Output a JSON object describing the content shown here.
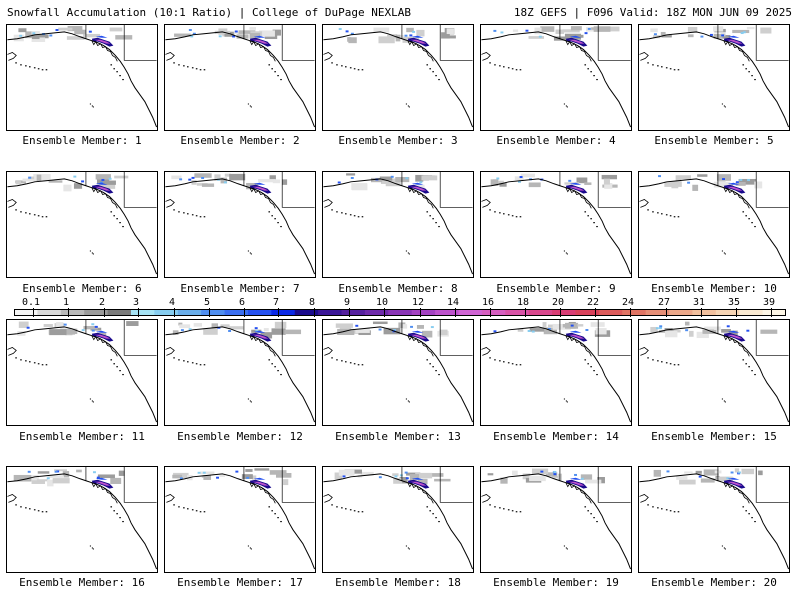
{
  "header": {
    "left": "Snowfall Accumulation (10:1 Ratio) | College of DuPage NEXLAB",
    "right": "18Z GEFS | F096 Valid: 18Z MON JUN 09 2025"
  },
  "panels": [
    {
      "label": "Ensemble Member: 1"
    },
    {
      "label": "Ensemble Member: 2"
    },
    {
      "label": "Ensemble Member: 3"
    },
    {
      "label": "Ensemble Member: 4"
    },
    {
      "label": "Ensemble Member: 5"
    },
    {
      "label": "Ensemble Member: 6"
    },
    {
      "label": "Ensemble Member: 7"
    },
    {
      "label": "Ensemble Member: 8"
    },
    {
      "label": "Ensemble Member: 9"
    },
    {
      "label": "Ensemble Member: 10"
    },
    {
      "label": "Ensemble Member: 11"
    },
    {
      "label": "Ensemble Member: 12"
    },
    {
      "label": "Ensemble Member: 13"
    },
    {
      "label": "Ensemble Member: 14"
    },
    {
      "label": "Ensemble Member: 15"
    },
    {
      "label": "Ensemble Member: 16"
    },
    {
      "label": "Ensemble Member: 17"
    },
    {
      "label": "Ensemble Member: 18"
    },
    {
      "label": "Ensemble Member: 19"
    },
    {
      "label": "Ensemble Member: 20"
    }
  ],
  "colorbar": {
    "ticks": [
      "0.1",
      "1",
      "2",
      "3",
      "4",
      "5",
      "6",
      "7",
      "8",
      "9",
      "10",
      "12",
      "14",
      "16",
      "18",
      "20",
      "22",
      "24",
      "27",
      "31",
      "35",
      "39"
    ],
    "colors": [
      "#f4f4f4",
      "#d8d8d8",
      "#b8b8b8",
      "#9a9a9a",
      "#7a7a7a",
      "#a6e3f5",
      "#87cdf0",
      "#6aaeea",
      "#4f8ef0",
      "#3a6ef0",
      "#2450f0",
      "#0a28e6",
      "#1a0a8c",
      "#3a1596",
      "#55209e",
      "#6e2aaa",
      "#8a35b6",
      "#a442c2",
      "#bd52cc",
      "#d064d4",
      "#d65ec0",
      "#d852a6",
      "#d8468c",
      "#d83c74",
      "#d8405a",
      "#dc5a5a",
      "#e07464",
      "#e68e76",
      "#eca88a",
      "#f2c09e",
      "#f6d4b4",
      "#faead2",
      "#fdf6e6"
    ]
  }
}
